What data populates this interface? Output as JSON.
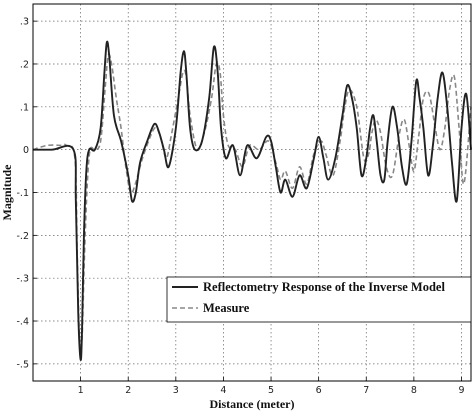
{
  "chart_data": {
    "type": "line",
    "title": "",
    "xlabel": "Distance (meter)",
    "ylabel": "Magnitude",
    "xlim": [
      0,
      9.2
    ],
    "ylim": [
      -0.54,
      0.34
    ],
    "xticks": [
      1,
      2,
      3,
      4,
      5,
      6,
      7,
      8,
      9
    ],
    "yticks": [
      -0.5,
      -0.4,
      -0.3,
      -0.2,
      -0.1,
      0,
      0.1,
      0.2,
      0.3
    ],
    "grid": true,
    "legend_position": "lower-right",
    "series": [
      {
        "name": "Reflectometry Response of the Inverse Model",
        "color": "#222222",
        "style": "solid",
        "x": [
          0,
          0.4,
          0.85,
          0.9,
          0.95,
          1.0,
          1.03,
          1.07,
          1.12,
          1.18,
          1.3,
          1.42,
          1.5,
          1.55,
          1.6,
          1.7,
          1.85,
          2.0,
          2.08,
          2.16,
          2.25,
          2.4,
          2.55,
          2.65,
          2.75,
          2.85,
          3.0,
          3.1,
          3.17,
          3.22,
          3.3,
          3.4,
          3.55,
          3.7,
          3.8,
          3.88,
          3.95,
          4.05,
          4.2,
          4.35,
          4.5,
          4.7,
          4.9,
          5.0,
          5.1,
          5.2,
          5.3,
          5.45,
          5.6,
          5.75,
          5.9,
          6.0,
          6.1,
          6.2,
          6.35,
          6.5,
          6.6,
          6.7,
          6.8,
          6.9,
          7.0,
          7.08,
          7.15,
          7.22,
          7.3,
          7.38,
          7.45,
          7.55,
          7.65,
          7.75,
          7.85,
          7.95,
          8.05,
          8.12,
          8.2,
          8.3,
          8.4,
          8.5,
          8.6,
          8.7,
          8.8,
          8.9,
          9.0,
          9.1,
          9.2
        ],
        "y": [
          0,
          0,
          0,
          -0.12,
          -0.38,
          -0.49,
          -0.42,
          -0.2,
          -0.05,
          0,
          0,
          0.05,
          0.18,
          0.25,
          0.22,
          0.08,
          0.02,
          -0.06,
          -0.12,
          -0.1,
          -0.03,
          0.02,
          0.06,
          0.04,
          0.0,
          -0.04,
          0.05,
          0.18,
          0.23,
          0.18,
          0.05,
          0.0,
          0.02,
          0.12,
          0.24,
          0.18,
          0.05,
          -0.02,
          0.01,
          -0.06,
          0.01,
          -0.02,
          0.03,
          0.02,
          -0.04,
          -0.1,
          -0.07,
          -0.11,
          -0.06,
          -0.09,
          -0.02,
          0.03,
          -0.02,
          -0.07,
          -0.02,
          0.08,
          0.15,
          0.12,
          0.05,
          -0.06,
          -0.02,
          0.05,
          0.08,
          0.02,
          -0.06,
          -0.07,
          0.02,
          0.1,
          0.05,
          -0.04,
          -0.08,
          0.02,
          0.16,
          0.12,
          0.05,
          -0.06,
          0.01,
          0.12,
          0.18,
          0.1,
          -0.03,
          -0.12,
          0.05,
          0.13,
          0.0
        ]
      },
      {
        "name": "Measure",
        "color": "#888888",
        "style": "dashed",
        "x": [
          0,
          0.3,
          0.6,
          0.7,
          0.88,
          0.93,
          0.98,
          1.03,
          1.08,
          1.14,
          1.2,
          1.3,
          1.42,
          1.52,
          1.58,
          1.65,
          1.75,
          1.85,
          1.95,
          2.05,
          2.15,
          2.3,
          2.5,
          2.6,
          2.7,
          2.8,
          2.9,
          3.05,
          3.15,
          3.22,
          3.3,
          3.45,
          3.6,
          3.75,
          3.85,
          3.93,
          4.0,
          4.1,
          4.25,
          4.4,
          4.55,
          4.75,
          4.95,
          5.1,
          5.2,
          5.3,
          5.45,
          5.6,
          5.75,
          5.9,
          6.05,
          6.15,
          6.3,
          6.45,
          6.55,
          6.65,
          6.8,
          6.95,
          7.05,
          7.12,
          7.2,
          7.3,
          7.42,
          7.55,
          7.7,
          7.8,
          7.9,
          8.0,
          8.1,
          8.2,
          8.32,
          8.45,
          8.55,
          8.65,
          8.75,
          8.85,
          8.95,
          9.05,
          9.2
        ],
        "y": [
          0,
          0.01,
          0.01,
          0.01,
          -0.02,
          -0.25,
          -0.45,
          -0.44,
          -0.25,
          -0.08,
          0.0,
          0.0,
          0.02,
          0.15,
          0.22,
          0.2,
          0.12,
          0.05,
          -0.04,
          -0.1,
          -0.08,
          -0.02,
          0.04,
          0.05,
          0.02,
          -0.02,
          0.03,
          0.12,
          0.18,
          0.17,
          0.08,
          0.0,
          0.04,
          0.12,
          0.2,
          0.18,
          0.08,
          0.01,
          0.0,
          -0.04,
          0.01,
          0.0,
          0.02,
          -0.03,
          -0.07,
          -0.05,
          -0.09,
          -0.04,
          -0.08,
          -0.01,
          0.02,
          -0.01,
          -0.06,
          0.02,
          0.1,
          0.14,
          0.1,
          -0.02,
          -0.01,
          0.04,
          0.07,
          0.04,
          -0.04,
          -0.06,
          0.04,
          0.07,
          0.01,
          -0.05,
          0.03,
          0.12,
          0.13,
          0.05,
          0.0,
          0.05,
          0.14,
          0.17,
          0.05,
          -0.08,
          0.1
        ]
      }
    ]
  }
}
